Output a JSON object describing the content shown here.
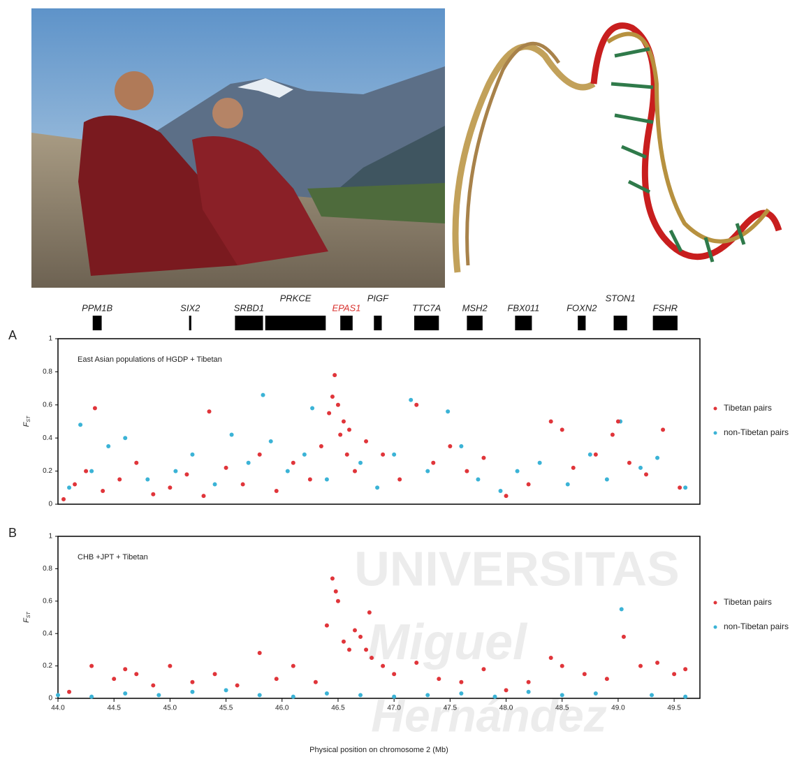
{
  "genes": [
    {
      "name": "PPM1B",
      "start": 44.31,
      "end": 44.39,
      "color": "#222222"
    },
    {
      "name": "SIX2",
      "start": 45.17,
      "end": 45.19,
      "color": "#222222"
    },
    {
      "name": "SRBD1",
      "start": 45.58,
      "end": 45.83,
      "color": "#222222"
    },
    {
      "name": "PRKCE",
      "start": 45.85,
      "end": 46.39,
      "color": "#222222"
    },
    {
      "name": "EPAS1",
      "start": 46.52,
      "end": 46.63,
      "color": "#d8322f"
    },
    {
      "name": "PIGF",
      "start": 46.82,
      "end": 46.89,
      "color": "#222222"
    },
    {
      "name": "TTC7A",
      "start": 47.18,
      "end": 47.4,
      "color": "#222222"
    },
    {
      "name": "MSH2",
      "start": 47.65,
      "end": 47.79,
      "color": "#222222"
    },
    {
      "name": "FBX011",
      "start": 48.08,
      "end": 48.23,
      "color": "#222222"
    },
    {
      "name": "FOXN2",
      "start": 48.64,
      "end": 48.71,
      "color": "#222222"
    },
    {
      "name": "STON1",
      "start": 48.96,
      "end": 49.08,
      "color": "#222222"
    },
    {
      "name": "FSHR",
      "start": 49.31,
      "end": 49.53,
      "color": "#222222"
    }
  ],
  "watermark": [
    "UNIVERSITAS",
    "Miguel",
    "Hernández"
  ],
  "chart_data": [
    {
      "type": "scatter",
      "panel": "A",
      "annotation": "East Asian populations of HGDP + Tibetan",
      "ylabel": "F",
      "ylabel_subscript": "ST",
      "xlim": [
        44,
        49.73
      ],
      "ylim": [
        0,
        1
      ],
      "yticks": [
        0,
        0.2,
        0.4,
        0.6,
        0.8,
        1
      ],
      "series": [
        {
          "name": "Tibetan pairs",
          "color": "#e0353a",
          "x": [
            44.05,
            44.15,
            44.25,
            44.33,
            44.4,
            44.55,
            44.7,
            44.85,
            45.0,
            45.15,
            45.3,
            45.35,
            45.5,
            45.65,
            45.8,
            45.95,
            46.1,
            46.25,
            46.35,
            46.42,
            46.45,
            46.47,
            46.5,
            46.52,
            46.55,
            46.58,
            46.6,
            46.65,
            46.75,
            46.9,
            47.05,
            47.2,
            47.35,
            47.5,
            47.65,
            47.8,
            48.0,
            48.2,
            48.4,
            48.5,
            48.6,
            48.8,
            48.95,
            49.0,
            49.1,
            49.25,
            49.4,
            49.55
          ],
          "values": [
            0.03,
            0.12,
            0.2,
            0.58,
            0.08,
            0.15,
            0.25,
            0.06,
            0.1,
            0.18,
            0.05,
            0.56,
            0.22,
            0.12,
            0.3,
            0.08,
            0.25,
            0.15,
            0.35,
            0.55,
            0.65,
            0.78,
            0.6,
            0.42,
            0.5,
            0.3,
            0.45,
            0.2,
            0.38,
            0.3,
            0.15,
            0.6,
            0.25,
            0.35,
            0.2,
            0.28,
            0.05,
            0.12,
            0.5,
            0.45,
            0.22,
            0.3,
            0.42,
            0.5,
            0.25,
            0.18,
            0.45,
            0.1
          ]
        },
        {
          "name": "non-Tibetan pairs",
          "color": "#3bb3d6",
          "x": [
            44.1,
            44.2,
            44.3,
            44.45,
            44.6,
            44.8,
            45.05,
            45.2,
            45.4,
            45.55,
            45.7,
            45.83,
            45.9,
            46.05,
            46.2,
            46.27,
            46.4,
            46.7,
            46.85,
            47.0,
            47.15,
            47.3,
            47.48,
            47.6,
            47.75,
            47.95,
            48.1,
            48.3,
            48.55,
            48.75,
            48.9,
            49.02,
            49.2,
            49.35,
            49.6
          ],
          "values": [
            0.1,
            0.48,
            0.2,
            0.35,
            0.4,
            0.15,
            0.2,
            0.3,
            0.12,
            0.42,
            0.25,
            0.66,
            0.38,
            0.2,
            0.3,
            0.58,
            0.15,
            0.25,
            0.1,
            0.3,
            0.63,
            0.2,
            0.56,
            0.35,
            0.15,
            0.08,
            0.2,
            0.25,
            0.12,
            0.3,
            0.15,
            0.5,
            0.22,
            0.28,
            0.1
          ]
        }
      ]
    },
    {
      "type": "scatter",
      "panel": "B",
      "annotation": "CHB +JPT + Tibetan",
      "ylabel": "F",
      "ylabel_subscript": "ST",
      "xlabel": "Physical position on chromosome 2 (Mb)",
      "xlim": [
        44,
        49.73
      ],
      "ylim": [
        0,
        1
      ],
      "yticks": [
        0,
        0.2,
        0.4,
        0.6,
        0.8,
        1
      ],
      "xticks": [
        {
          "value": 44,
          "label": "44.0"
        },
        44.5,
        {
          "value": 45,
          "label": "45.0"
        },
        45.5,
        {
          "value": 46,
          "label": "46.0"
        },
        46.5,
        {
          "value": 47,
          "label": "47.0"
        },
        47.5,
        {
          "value": 48,
          "label": "48.0"
        },
        48.5,
        {
          "value": 49,
          "label": "49.0"
        },
        49.5
      ],
      "series": [
        {
          "name": "Tibetan pairs",
          "color": "#e0353a",
          "x": [
            44.1,
            44.3,
            44.5,
            44.6,
            44.7,
            44.85,
            45.0,
            45.2,
            45.4,
            45.6,
            45.8,
            45.95,
            46.1,
            46.3,
            46.4,
            46.45,
            46.48,
            46.5,
            46.55,
            46.6,
            46.65,
            46.7,
            46.75,
            46.78,
            46.8,
            46.9,
            47.0,
            47.2,
            47.4,
            47.6,
            47.8,
            48.0,
            48.2,
            48.4,
            48.5,
            48.7,
            48.9,
            49.05,
            49.2,
            49.35,
            49.5,
            49.6
          ],
          "values": [
            0.04,
            0.2,
            0.12,
            0.18,
            0.15,
            0.08,
            0.2,
            0.1,
            0.15,
            0.08,
            0.28,
            0.12,
            0.2,
            0.1,
            0.45,
            0.74,
            0.66,
            0.6,
            0.35,
            0.3,
            0.42,
            0.38,
            0.3,
            0.53,
            0.25,
            0.2,
            0.15,
            0.22,
            0.12,
            0.1,
            0.18,
            0.05,
            0.1,
            0.25,
            0.2,
            0.15,
            0.12,
            0.38,
            0.2,
            0.22,
            0.15,
            0.18
          ]
        },
        {
          "name": "non-Tibetan pairs",
          "color": "#3bb3d6",
          "x": [
            44.0,
            44.3,
            44.6,
            44.9,
            45.2,
            45.5,
            45.8,
            46.1,
            46.4,
            46.7,
            47.0,
            47.3,
            47.6,
            47.9,
            48.2,
            48.5,
            48.8,
            49.03,
            49.3,
            49.6
          ],
          "values": [
            0.02,
            0.01,
            0.03,
            0.02,
            0.04,
            0.05,
            0.02,
            0.01,
            0.03,
            0.02,
            0.01,
            0.02,
            0.03,
            0.01,
            0.04,
            0.02,
            0.03,
            0.55,
            0.02,
            0.01
          ]
        }
      ]
    }
  ]
}
